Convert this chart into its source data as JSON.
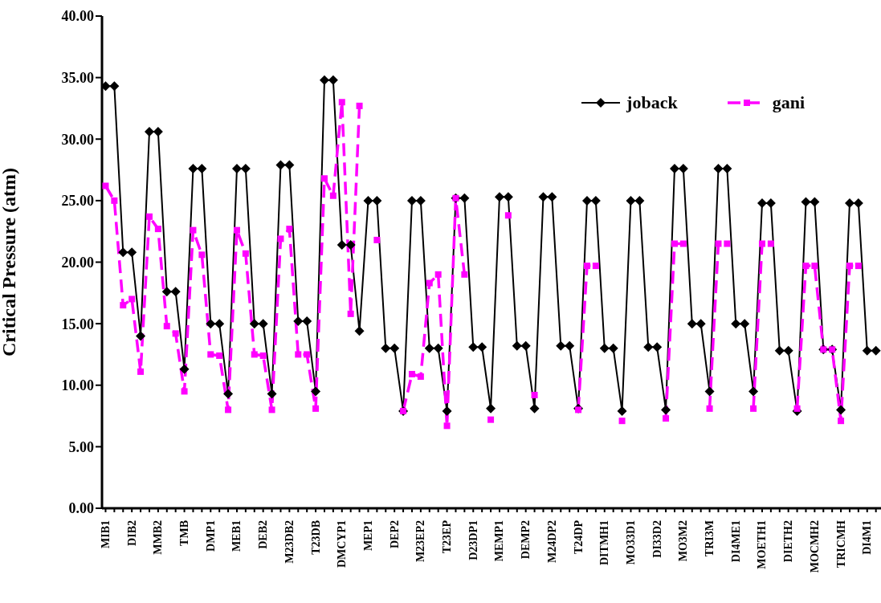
{
  "chart_data": {
    "type": "line",
    "ylabel": "Critical Pressure (atm)",
    "categories": [
      "MIB1",
      null,
      null,
      "DIB2",
      null,
      null,
      "MMB2",
      null,
      null,
      "TMB",
      null,
      null,
      "DMP1",
      null,
      null,
      "MEB1",
      null,
      null,
      "DEB2",
      null,
      null,
      "M23DB2",
      null,
      null,
      "T23DB",
      null,
      null,
      "DMCYP1",
      null,
      null,
      "MEP1",
      null,
      null,
      "DEP2",
      null,
      null,
      "M23EP2",
      null,
      null,
      "T23EP",
      null,
      null,
      "D23DP1",
      null,
      null,
      "MEMP1",
      null,
      null,
      "DEMP2",
      null,
      null,
      "M24DP2",
      null,
      null,
      "T24DP",
      null,
      null,
      "DITMH1",
      null,
      null,
      "MO33D1",
      null,
      null,
      "DI33D2",
      null,
      null,
      "MO3M2",
      null,
      null,
      "TRI3M",
      null,
      null,
      "DI4ME1",
      null,
      null,
      "MOETH1",
      null,
      null,
      "DIETH2",
      null,
      null,
      "MOCMH2",
      null,
      null,
      "TRICMH",
      null,
      null,
      "DI4M1",
      null
    ],
    "series": [
      {
        "name": "joback",
        "color": "#000000",
        "marker": "diamond",
        "line_style": "solid",
        "values": [
          34.3,
          34.3,
          20.8,
          20.8,
          14.0,
          30.6,
          30.6,
          17.6,
          17.6,
          11.3,
          27.6,
          27.6,
          15.0,
          15.0,
          9.3,
          27.6,
          27.6,
          15.0,
          15.0,
          9.3,
          27.9,
          27.9,
          15.2,
          15.2,
          9.5,
          34.8,
          34.8,
          21.4,
          21.4,
          14.4,
          25.0,
          25.0,
          13.0,
          13.0,
          7.9,
          25.0,
          25.0,
          13.0,
          13.0,
          7.9,
          25.2,
          25.2,
          13.1,
          13.1,
          8.1,
          25.3,
          25.3,
          13.2,
          13.2,
          8.1,
          25.3,
          25.3,
          13.2,
          13.2,
          8.1,
          25.0,
          25.0,
          13.0,
          13.0,
          7.9,
          25.0,
          25.0,
          13.1,
          13.1,
          8.0,
          27.6,
          27.6,
          15.0,
          15.0,
          9.5,
          27.6,
          27.6,
          15.0,
          15.0,
          9.5,
          24.8,
          24.8,
          12.8,
          12.8,
          7.9,
          24.9,
          24.9,
          12.9,
          12.9,
          8.0,
          24.8,
          24.8,
          12.8,
          12.8
        ]
      },
      {
        "name": "gani",
        "color": "#ff00ff",
        "marker": "square",
        "line_style": "dashed",
        "values": [
          26.2,
          25.0,
          16.5,
          17.0,
          11.1,
          23.7,
          22.7,
          14.8,
          14.2,
          9.5,
          22.6,
          20.6,
          12.5,
          12.4,
          8.0,
          22.6,
          20.7,
          12.5,
          12.4,
          8.0,
          21.9,
          22.7,
          12.5,
          12.5,
          8.1,
          26.8,
          25.4,
          33.0,
          15.8,
          32.7,
          null,
          21.8,
          null,
          null,
          7.9,
          10.9,
          10.7,
          18.3,
          19.0,
          6.7,
          25.2,
          19.0,
          null,
          null,
          7.2,
          null,
          23.8,
          null,
          null,
          9.2,
          null,
          null,
          null,
          null,
          8.0,
          19.7,
          19.7,
          null,
          null,
          7.1,
          null,
          null,
          null,
          null,
          7.3,
          21.5,
          21.5,
          null,
          null,
          8.1,
          21.5,
          21.5,
          null,
          null,
          8.1,
          21.5,
          21.5,
          null,
          null,
          8.1,
          19.7,
          19.7,
          12.9,
          12.9,
          7.1,
          19.7,
          19.7,
          null,
          null
        ]
      }
    ],
    "ylim": [
      0,
      40
    ],
    "yticks": [
      {
        "value": 0,
        "label": "0.00"
      },
      {
        "value": 5,
        "label": "5.00"
      },
      {
        "value": 10,
        "label": "10.00"
      },
      {
        "value": 15,
        "label": "15.00"
      },
      {
        "value": 20,
        "label": "20.00"
      },
      {
        "value": 25,
        "label": "25.00"
      },
      {
        "value": 30,
        "label": "30.00"
      },
      {
        "value": 35,
        "label": "35.00"
      },
      {
        "value": 40,
        "label": "40.00"
      }
    ],
    "grid": false,
    "legend": "top right"
  }
}
